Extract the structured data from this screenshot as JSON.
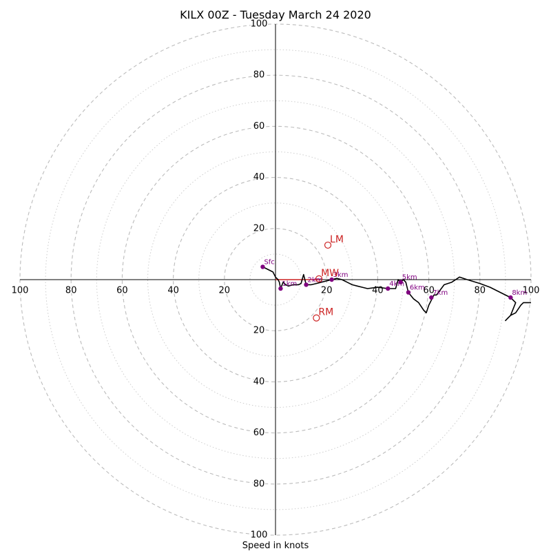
{
  "chart_data": {
    "type": "hodograph",
    "title": "KILX 00Z - Tuesday March 24 2020",
    "xlabel": "Speed in knots",
    "units": "knots",
    "range": 100,
    "ring_step": 10,
    "labeled_rings": [
      20,
      40,
      60,
      80,
      100
    ],
    "axis_tick_labels": {
      "x_left": [
        "100",
        "80",
        "60",
        "40",
        "20"
      ],
      "x_right": [
        "20",
        "40",
        "60",
        "80",
        "100"
      ],
      "y_top": [
        "100",
        "80",
        "60",
        "40",
        "20"
      ],
      "y_bottom": [
        "20",
        "40",
        "60",
        "80",
        "100"
      ]
    },
    "hodograph_trace": [
      [
        -5,
        5
      ],
      [
        -1,
        3
      ],
      [
        0,
        1
      ],
      [
        1,
        0
      ],
      [
        1.5,
        -1
      ],
      [
        2,
        -3.5
      ],
      [
        3,
        -1
      ],
      [
        4,
        -2
      ],
      [
        5,
        -2.5
      ],
      [
        7,
        -2
      ],
      [
        9,
        -2
      ],
      [
        10,
        -1.5
      ],
      [
        11,
        2
      ],
      [
        12,
        -2
      ],
      [
        14,
        -2
      ],
      [
        16,
        -1.5
      ],
      [
        18,
        -1
      ],
      [
        20,
        -0.5
      ],
      [
        22,
        0
      ],
      [
        24,
        0.5
      ],
      [
        26,
        0
      ],
      [
        28,
        -1
      ],
      [
        30,
        -2
      ],
      [
        32,
        -2.5
      ],
      [
        34,
        -3
      ],
      [
        36,
        -3.5
      ],
      [
        40,
        -3
      ],
      [
        44,
        -3.5
      ],
      [
        46,
        -3.5
      ],
      [
        47,
        -3.5
      ],
      [
        48,
        0
      ],
      [
        49,
        -1
      ],
      [
        50,
        0
      ],
      [
        51,
        -1
      ],
      [
        52,
        -5
      ],
      [
        54,
        -7.5
      ],
      [
        56,
        -9
      ],
      [
        58,
        -12
      ],
      [
        59,
        -13
      ],
      [
        60,
        -10
      ],
      [
        62,
        -6
      ],
      [
        63,
        -6
      ],
      [
        66,
        -2
      ],
      [
        69,
        -1
      ],
      [
        72,
        1
      ],
      [
        75,
        0
      ],
      [
        80,
        -1.5
      ],
      [
        84,
        -3
      ],
      [
        88,
        -5
      ],
      [
        92,
        -7
      ],
      [
        94,
        -9
      ],
      [
        92,
        -14
      ],
      [
        91,
        -15
      ],
      [
        90,
        -16
      ],
      [
        92,
        -14
      ],
      [
        94,
        -13
      ],
      [
        96,
        -10
      ],
      [
        97,
        -9
      ],
      [
        99,
        -9
      ],
      [
        100,
        -9
      ]
    ],
    "height_markers": [
      {
        "label": "Sfc",
        "u": -5,
        "v": 5
      },
      {
        "label": "1km",
        "u": 2,
        "v": -3.5
      },
      {
        "label": "2km",
        "u": 12,
        "v": -2
      },
      {
        "label": "3km",
        "u": 22,
        "v": 0
      },
      {
        "label": "4km",
        "u": 44,
        "v": -3.5
      },
      {
        "label": "5km",
        "u": 49,
        "v": -1
      },
      {
        "label": "6km",
        "u": 52,
        "v": -5
      },
      {
        "label": "7km",
        "u": 61,
        "v": -7
      },
      {
        "label": "8km",
        "u": 92,
        "v": -7
      }
    ],
    "storm_motion": [
      {
        "label": "LM",
        "u": 20.5,
        "v": 13.5
      },
      {
        "label": "MW",
        "u": 17,
        "v": 0.3
      },
      {
        "label": "RM",
        "u": 16,
        "v": -15
      }
    ],
    "shear_vector": {
      "from": [
        0,
        0
      ],
      "to": [
        17,
        0
      ]
    },
    "colors": {
      "trace": "#000000",
      "height_marker": "#800080",
      "storm": "#cc2222",
      "grid_dashed": "#bbbbbb",
      "grid_dotted": "#cccccc",
      "axis": "#000000"
    }
  }
}
